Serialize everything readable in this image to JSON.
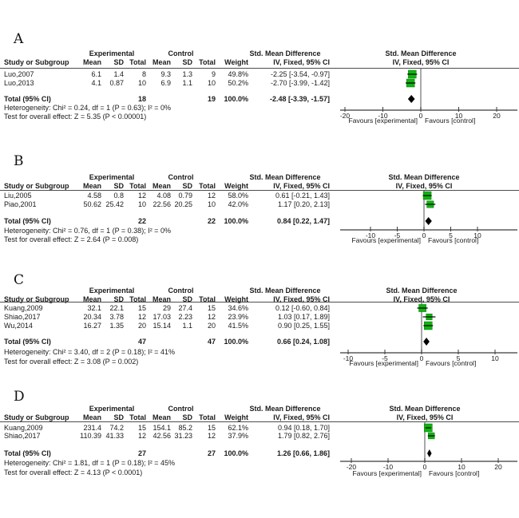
{
  "shared": {
    "columns": [
      "Study or Subgroup",
      "Mean",
      "SD",
      "Total",
      "Mean",
      "SD",
      "Total",
      "Weight",
      "IV, Fixed, 95% CI"
    ],
    "group_experimental": "Experimental",
    "group_control": "Control",
    "group_smd": "Std. Mean Difference",
    "plot_title": "Std. Mean Difference",
    "plot_subtitle": "IV, Fixed, 95% CI",
    "favours_left": "Favours [experimental]",
    "favours_right": "Favours [control]",
    "total_label": "Total (95% CI)",
    "colors": {
      "square_green": "#12b212",
      "square_border": "#067d06",
      "diamond_black": "#000000",
      "zero_line_gray": "#8c8c8c",
      "axis_line": "#3a3a3a",
      "ci_line": "#000000"
    }
  },
  "chart_data": [
    {
      "type": "forest",
      "label": "A",
      "axis": {
        "ticks": [
          -20,
          -10,
          0,
          10,
          20
        ],
        "min": -25,
        "max": 25
      },
      "studies": [
        {
          "study": "Luo,2007",
          "exp_mean": "6.1",
          "exp_sd": "1.4",
          "exp_total": "8",
          "ctl_mean": "9.3",
          "ctl_sd": "1.3",
          "ctl_total": "9",
          "weight": "49.8%",
          "smd_ci": "-2.25 [-3.54, -0.97]",
          "smd": -2.25,
          "ci_low": -3.54,
          "ci_high": -0.97,
          "weight_pct": 49.8
        },
        {
          "study": "Luo,2013",
          "exp_mean": "4.1",
          "exp_sd": "0.87",
          "exp_total": "10",
          "ctl_mean": "6.9",
          "ctl_sd": "1.1",
          "ctl_total": "10",
          "weight": "50.2%",
          "smd_ci": "-2.70 [-3.99, -1.42]",
          "smd": -2.7,
          "ci_low": -3.99,
          "ci_high": -1.42,
          "weight_pct": 50.2
        }
      ],
      "total": {
        "exp_total": "18",
        "ctl_total": "19",
        "weight": "100.0%",
        "smd_ci": "-2.48 [-3.39, -1.57]",
        "smd": -2.48,
        "ci_low": -3.39,
        "ci_high": -1.57
      },
      "heterogeneity": "Heterogeneity: Chi² = 0.24, df = 1 (P = 0.63); I² = 0%",
      "overall_effect": "Test for overall effect: Z = 5.35 (P < 0.00001)"
    },
    {
      "type": "forest",
      "label": "B",
      "axis": {
        "ticks": [
          -10,
          -5,
          0,
          5,
          10
        ],
        "min": -15,
        "max": 15
      },
      "studies": [
        {
          "study": "Liu,2005",
          "exp_mean": "4.58",
          "exp_sd": "0.8",
          "exp_total": "12",
          "ctl_mean": "4.08",
          "ctl_sd": "0.79",
          "ctl_total": "12",
          "weight": "58.0%",
          "smd_ci": "0.61 [-0.21, 1.43]",
          "smd": 0.61,
          "ci_low": -0.21,
          "ci_high": 1.43,
          "weight_pct": 58.0
        },
        {
          "study": "Piao,2001",
          "exp_mean": "50.62",
          "exp_sd": "25.42",
          "exp_total": "10",
          "ctl_mean": "22.56",
          "ctl_sd": "20.25",
          "ctl_total": "10",
          "weight": "42.0%",
          "smd_ci": "1.17 [0.20, 2.13]",
          "smd": 1.17,
          "ci_low": 0.2,
          "ci_high": 2.13,
          "weight_pct": 42.0
        }
      ],
      "total": {
        "exp_total": "22",
        "ctl_total": "22",
        "weight": "100.0%",
        "smd_ci": "0.84 [0.22, 1.47]",
        "smd": 0.84,
        "ci_low": 0.22,
        "ci_high": 1.47
      },
      "heterogeneity": "Heterogeneity: Chi² = 0.76, df = 1 (P = 0.38); I² = 0%",
      "overall_effect": "Test for overall effect: Z = 2.64 (P = 0.008)"
    },
    {
      "type": "forest",
      "label": "C",
      "axis": {
        "ticks": [
          -10,
          -5,
          0,
          5,
          10
        ],
        "min": -12,
        "max": 12
      },
      "studies": [
        {
          "study": "Kuang,2009",
          "exp_mean": "32.1",
          "exp_sd": "22.1",
          "exp_total": "15",
          "ctl_mean": "29",
          "ctl_sd": "27.4",
          "ctl_total": "15",
          "weight": "34.6%",
          "smd_ci": "0.12 [-0.60, 0.84]",
          "smd": 0.12,
          "ci_low": -0.6,
          "ci_high": 0.84,
          "weight_pct": 34.6
        },
        {
          "study": "Shiao,2017",
          "exp_mean": "20.34",
          "exp_sd": "3.78",
          "exp_total": "12",
          "ctl_mean": "17.03",
          "ctl_sd": "2.23",
          "ctl_total": "12",
          "weight": "23.9%",
          "smd_ci": "1.03 [0.17, 1.89]",
          "smd": 1.03,
          "ci_low": 0.17,
          "ci_high": 1.89,
          "weight_pct": 23.9
        },
        {
          "study": "Wu,2014",
          "exp_mean": "16.27",
          "exp_sd": "1.35",
          "exp_total": "20",
          "ctl_mean": "15.14",
          "ctl_sd": "1.1",
          "ctl_total": "20",
          "weight": "41.5%",
          "smd_ci": "0.90 [0.25, 1.55]",
          "smd": 0.9,
          "ci_low": 0.25,
          "ci_high": 1.55,
          "weight_pct": 41.5
        }
      ],
      "total": {
        "exp_total": "47",
        "ctl_total": "47",
        "weight": "100.0%",
        "smd_ci": "0.66 [0.24, 1.08]",
        "smd": 0.66,
        "ci_low": 0.24,
        "ci_high": 1.08
      },
      "heterogeneity": "Heterogeneity: Chi² = 3.40, df = 2 (P = 0.18); I² = 41%",
      "overall_effect": "Test for overall effect: Z = 3.08 (P = 0.002)"
    },
    {
      "type": "forest",
      "label": "D",
      "axis": {
        "ticks": [
          -20,
          -10,
          0,
          10,
          20
        ],
        "min": -25,
        "max": 25
      },
      "studies": [
        {
          "study": "Kuang,2009",
          "exp_mean": "231.4",
          "exp_sd": "74.2",
          "exp_total": "15",
          "ctl_mean": "154.1",
          "ctl_sd": "85.2",
          "ctl_total": "15",
          "weight": "62.1%",
          "smd_ci": "0.94 [0.18, 1.70]",
          "smd": 0.94,
          "ci_low": 0.18,
          "ci_high": 1.7,
          "weight_pct": 62.1
        },
        {
          "study": "Shiao,2017",
          "exp_mean": "110.39",
          "exp_sd": "41.33",
          "exp_total": "12",
          "ctl_mean": "42.56",
          "ctl_sd": "31.23",
          "ctl_total": "12",
          "weight": "37.9%",
          "smd_ci": "1.79 [0.82, 2.76]",
          "smd": 1.79,
          "ci_low": 0.82,
          "ci_high": 2.76,
          "weight_pct": 37.9
        }
      ],
      "total": {
        "exp_total": "27",
        "ctl_total": "27",
        "weight": "100.0%",
        "smd_ci": "1.26 [0.66, 1.86]",
        "smd": 1.26,
        "ci_low": 0.66,
        "ci_high": 1.86
      },
      "heterogeneity": "Heterogeneity: Chi² = 1.81, df = 1 (P = 0.18); I² = 45%",
      "overall_effect": "Test for overall effect: Z = 4.13 (P < 0.0001)"
    }
  ]
}
